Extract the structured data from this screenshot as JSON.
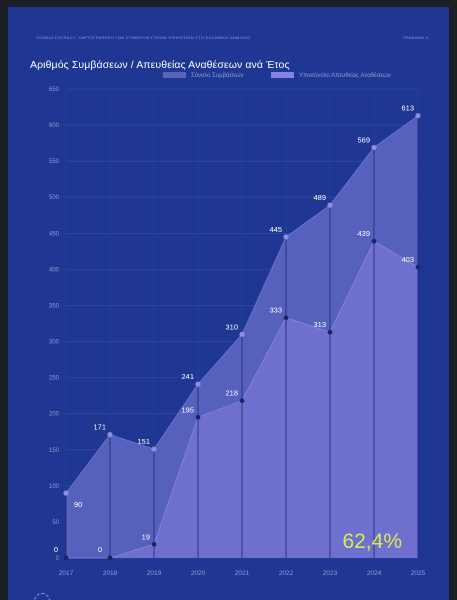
{
  "header": {
    "left_text": "CONSULTOCRACY: ΧΑΡΤΟΓΡΑΦΗΣΗ ΤΩΝ ΣΥΜΒΟΥΛΕΥΤΙΚΩΝ ΥΠΗΡΕΣΙΩΝ ΣΤΟ ΕΛΛΗΝΙΚΟ ΔΗΜΟΣΙΟ",
    "right_text": "ΓΡΑΦΗΜΑ 3"
  },
  "colors": {
    "background": "#1f3793",
    "total_fill": "#5a63c0",
    "direct_fill": "#6f6fd0",
    "total_legend": "#5b64b8",
    "direct_legend": "#8582e0",
    "highlight": "#d8ea52"
  },
  "chart_data": {
    "type": "area",
    "title": "Αριθμός Συμβάσεων / Απευθείας Αναθέσεων ανά Έτος",
    "x": [
      "2017",
      "2018",
      "2019",
      "2020",
      "2021",
      "2022",
      "2023",
      "2024",
      "2025"
    ],
    "ylim": [
      0,
      650
    ],
    "yticks": [
      0,
      50,
      100,
      150,
      200,
      250,
      300,
      350,
      400,
      450,
      500,
      550,
      600,
      650
    ],
    "grid": true,
    "legend_position": "top-right",
    "series": [
      {
        "name": "Σύνολο Συμβάσεων",
        "values": [
          90,
          171,
          151,
          241,
          310,
          445,
          489,
          569,
          613
        ]
      },
      {
        "name": "Υποσύνολο Απευθείας Αναθέσεων",
        "values": [
          0,
          0,
          19,
          195,
          218,
          333,
          313,
          439,
          403
        ]
      }
    ],
    "annotation": "62,4%"
  }
}
